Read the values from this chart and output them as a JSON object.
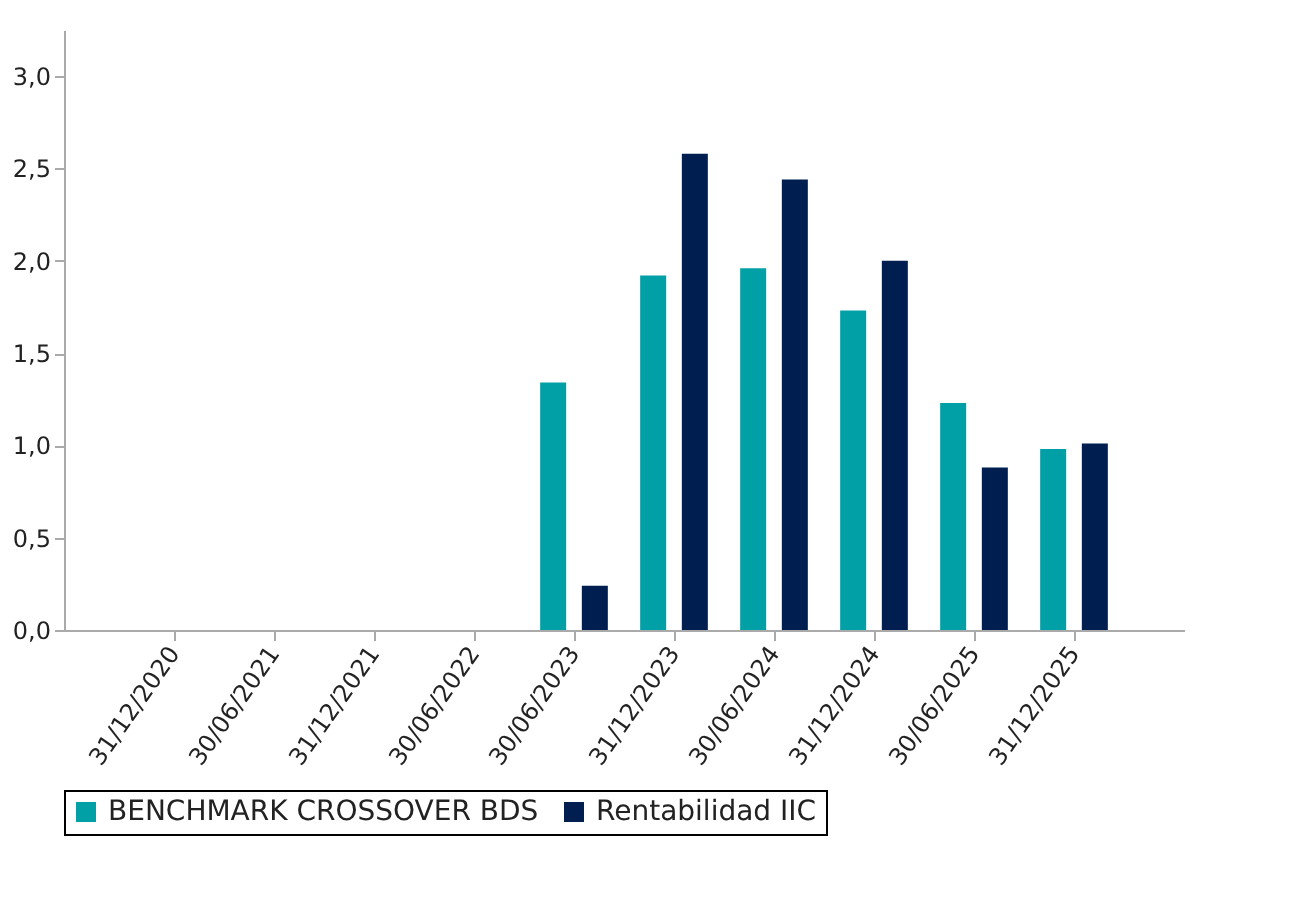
{
  "chart_data": {
    "type": "bar",
    "categories": [
      "31/12/2020",
      "30/06/2021",
      "31/12/2021",
      "30/06/2022",
      "30/06/2023",
      "31/12/2023",
      "30/06/2024",
      "31/12/2024",
      "30/06/2025",
      "31/12/2025"
    ],
    "series": [
      {
        "name": "BENCHMARK CROSSOVER BDS",
        "color": "#00a0a6",
        "values": [
          null,
          null,
          null,
          null,
          1.34,
          1.92,
          1.96,
          1.73,
          1.23,
          0.98
        ]
      },
      {
        "name": "Rentabilidad IIC",
        "color": "#001e50",
        "values": [
          null,
          null,
          null,
          null,
          0.24,
          2.58,
          2.44,
          2.0,
          0.88,
          1.01
        ]
      }
    ],
    "ylim": [
      0,
      3.25
    ],
    "yticks": [
      {
        "value": 0,
        "label": "0,0"
      },
      {
        "value": 0.5,
        "label": "0,5"
      },
      {
        "value": 1,
        "label": "1,0"
      },
      {
        "value": 1.5,
        "label": "1,5"
      },
      {
        "value": 2,
        "label": "2,0"
      },
      {
        "value": 2.5,
        "label": "2,5"
      },
      {
        "value": 3,
        "label": "3,0"
      }
    ],
    "grid": false,
    "legend": "bottom"
  }
}
